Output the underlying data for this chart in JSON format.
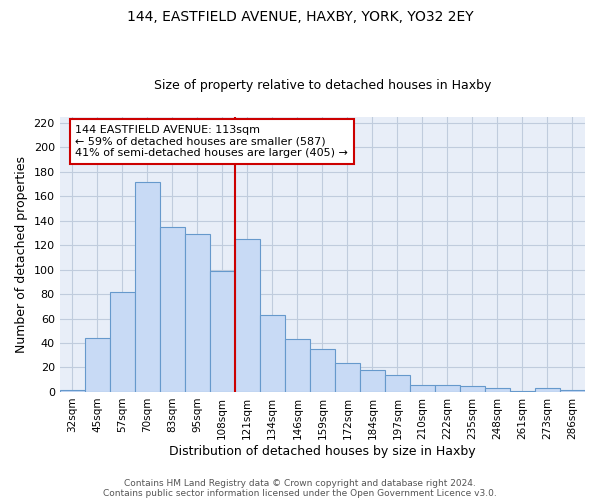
{
  "title1": "144, EASTFIELD AVENUE, HAXBY, YORK, YO32 2EY",
  "title2": "Size of property relative to detached houses in Haxby",
  "xlabel": "Distribution of detached houses by size in Haxby",
  "ylabel": "Number of detached properties",
  "categories": [
    "32sqm",
    "45sqm",
    "57sqm",
    "70sqm",
    "83sqm",
    "95sqm",
    "108sqm",
    "121sqm",
    "134sqm",
    "146sqm",
    "159sqm",
    "172sqm",
    "184sqm",
    "197sqm",
    "210sqm",
    "222sqm",
    "235sqm",
    "248sqm",
    "261sqm",
    "273sqm",
    "286sqm"
  ],
  "values": [
    2,
    44,
    82,
    172,
    135,
    129,
    99,
    125,
    63,
    43,
    35,
    24,
    18,
    14,
    6,
    6,
    5,
    3,
    1,
    3,
    2
  ],
  "bar_color": "#c8daf5",
  "bar_edge_color": "#6699cc",
  "vline_color": "#cc0000",
  "annotation_title": "144 EASTFIELD AVENUE: 113sqm",
  "annotation_line1": "← 59% of detached houses are smaller (587)",
  "annotation_line2": "41% of semi-detached houses are larger (405) →",
  "annotation_box_edge": "#cc0000",
  "ylim": [
    0,
    225
  ],
  "yticks": [
    0,
    20,
    40,
    60,
    80,
    100,
    120,
    140,
    160,
    180,
    200,
    220
  ],
  "footer1": "Contains HM Land Registry data © Crown copyright and database right 2024.",
  "footer2": "Contains public sector information licensed under the Open Government Licence v3.0.",
  "bg_color": "#ffffff",
  "plot_bg_color": "#e8eef8",
  "grid_color": "#c0ccdd"
}
